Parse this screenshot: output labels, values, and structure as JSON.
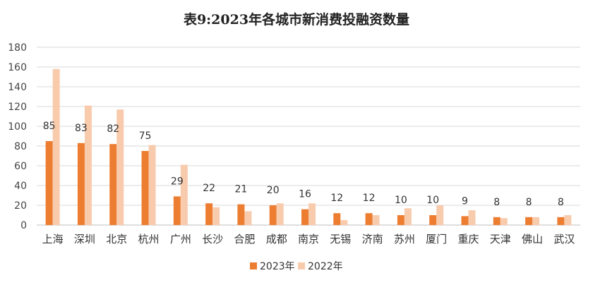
{
  "chart_data": {
    "type": "bar",
    "title": "表9:2023年各城市新消费投融资数量",
    "xlabel": "",
    "ylabel": "",
    "ylim": [
      0,
      180
    ],
    "yticks": [
      0,
      20,
      40,
      60,
      80,
      100,
      120,
      140,
      160,
      180
    ],
    "grid": true,
    "legend_position": "bottom",
    "categories": [
      "上海",
      "深圳",
      "北京",
      "杭州",
      "广州",
      "长沙",
      "合肥",
      "成都",
      "南京",
      "无锡",
      "济南",
      "苏州",
      "厦门",
      "重庆",
      "天津",
      "佛山",
      "武汉"
    ],
    "series": [
      {
        "name": "2023年",
        "color": "#ED7D31",
        "values": [
          85,
          83,
          82,
          75,
          29,
          22,
          21,
          20,
          16,
          12,
          12,
          10,
          10,
          9,
          8,
          8,
          8
        ],
        "data_labels": [
          85,
          83,
          82,
          75,
          29,
          22,
          21,
          20,
          16,
          12,
          12,
          10,
          10,
          9,
          8,
          8,
          8
        ]
      },
      {
        "name": "2022年",
        "color": "#F8CBAD",
        "values": [
          158,
          121,
          117,
          81,
          61,
          18,
          14,
          22,
          22,
          5,
          10,
          17,
          20,
          15,
          7,
          8,
          10
        ]
      }
    ]
  }
}
